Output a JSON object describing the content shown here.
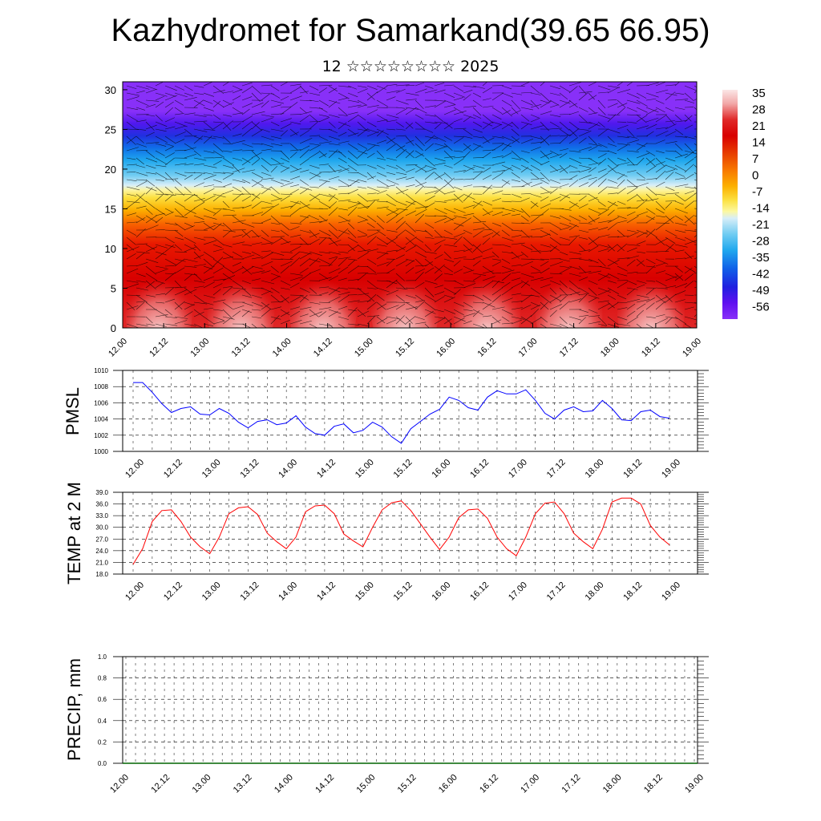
{
  "title": "Kazhydromet for Samarkand(39.65 66.95)",
  "subtitle": "12 ☆☆☆☆☆☆☆☆ 2025",
  "time_ticks": [
    "12.00",
    "12.12",
    "13.00",
    "13.12",
    "14.00",
    "14.12",
    "15.00",
    "15.12",
    "16.00",
    "16.12",
    "17.00",
    "17.12",
    "18.00",
    "18.12",
    "19.00"
  ],
  "chart_data": [
    {
      "type": "heatmap",
      "name": "temperature-height-section",
      "y_ticks": [
        "0",
        "5",
        "10",
        "15",
        "20",
        "25",
        "30"
      ],
      "ylim": [
        0,
        31
      ],
      "x_ticks": [
        "12.00",
        "12.12",
        "13.00",
        "13.12",
        "14.00",
        "14.12",
        "15.00",
        "15.12",
        "16.00",
        "16.12",
        "17.00",
        "17.12",
        "18.00",
        "18.12",
        "19.00"
      ],
      "colorbar_labels": [
        "35",
        "28",
        "21",
        "14",
        "7",
        "0",
        "-7",
        "-14",
        "-21",
        "-28",
        "-35",
        "-42",
        "-49",
        "-56"
      ],
      "colorbar_range": [
        35,
        -56
      ],
      "overlay": "wind vectors",
      "colors": [
        "#fbe6e6",
        "#f2a8a8",
        "#e04040",
        "#d80000",
        "#e83c00",
        "#f87800",
        "#fcb000",
        "#fce040",
        "#fcf8a0",
        "#d8eef8",
        "#70ccf2",
        "#20a8ee",
        "#1060e8",
        "#2020e0",
        "#6010f0",
        "#8830f8"
      ]
    },
    {
      "type": "line",
      "ylabel": "PMSL",
      "ylim": [
        1000,
        1010
      ],
      "y_ticks": [
        "1000",
        "1002",
        "1004",
        "1006",
        "1008",
        "1010"
      ],
      "x_ticks": [
        "12.00",
        "12.12",
        "13.00",
        "13.12",
        "14.00",
        "14.12",
        "15.00",
        "15.12",
        "16.00",
        "16.12",
        "17.00",
        "17.12",
        "18.00",
        "18.12",
        "19.00"
      ],
      "color": "#0000ff",
      "values": [
        1008.5,
        1008.5,
        1007.3,
        1005.9,
        1004.8,
        1005.3,
        1005.5,
        1004.6,
        1004.5,
        1005.3,
        1004.7,
        1003.6,
        1002.9,
        1003.7,
        1003.9,
        1003.3,
        1003.5,
        1004.4,
        1003.0,
        1002.2,
        1002.0,
        1003.1,
        1003.4,
        1002.3,
        1002.6,
        1003.6,
        1003.0,
        1001.8,
        1001.0,
        1002.8,
        1003.7,
        1004.6,
        1005.2,
        1006.7,
        1006.3,
        1005.4,
        1005.1,
        1006.7,
        1007.5,
        1007.1,
        1007.1,
        1007.6,
        1006.3,
        1004.7,
        1004.0,
        1005.1,
        1005.5,
        1004.9,
        1005.0,
        1006.3,
        1005.3,
        1003.9,
        1003.8,
        1004.9,
        1005.1,
        1004.3,
        1004.1
      ]
    },
    {
      "type": "line",
      "ylabel": "TEMP at 2 M",
      "ylim": [
        18,
        39
      ],
      "y_ticks": [
        "18.0",
        "21.0",
        "24.0",
        "27.0",
        "30.0",
        "33.0",
        "36.0",
        "39.0"
      ],
      "x_ticks": [
        "12.00",
        "12.12",
        "13.00",
        "13.12",
        "14.00",
        "14.12",
        "15.00",
        "15.12",
        "16.00",
        "16.12",
        "17.00",
        "17.12",
        "18.00",
        "18.12",
        "19.00"
      ],
      "color": "#ff0000",
      "values": [
        20.5,
        24.5,
        31.5,
        34.3,
        34.5,
        31.5,
        27.5,
        25.0,
        23.2,
        27.5,
        33.5,
        35.0,
        35.3,
        33.3,
        28.5,
        26.3,
        24.5,
        27.5,
        34.0,
        35.5,
        35.7,
        33.5,
        28.3,
        26.5,
        25.0,
        30.0,
        34.5,
        36.3,
        36.8,
        34.3,
        30.9,
        27.5,
        24.3,
        27.5,
        32.5,
        34.5,
        34.7,
        32.3,
        27.5,
        24.5,
        22.7,
        27.5,
        33.5,
        36.2,
        36.5,
        33.5,
        28.5,
        26.3,
        24.5,
        29.5,
        36.5,
        37.5,
        37.5,
        36.0,
        30.5,
        27.5,
        25.5
      ]
    },
    {
      "type": "line",
      "ylabel": "PRECIP, mm",
      "ylim": [
        0,
        1
      ],
      "y_ticks": [
        "0.0",
        "0.2",
        "0.4",
        "0.6",
        "0.8",
        "1.0"
      ],
      "x_ticks": [
        "12.00",
        "12.12",
        "13.00",
        "13.12",
        "14.00",
        "14.12",
        "15.00",
        "15.12",
        "16.00",
        "16.12",
        "17.00",
        "17.12",
        "18.00",
        "18.12",
        "19.00"
      ],
      "color": "#006400",
      "values": [
        0,
        0,
        0,
        0,
        0,
        0,
        0,
        0,
        0,
        0,
        0,
        0,
        0,
        0,
        0,
        0,
        0,
        0,
        0,
        0,
        0,
        0,
        0,
        0,
        0,
        0,
        0,
        0,
        0,
        0,
        0,
        0,
        0,
        0,
        0,
        0,
        0,
        0,
        0,
        0,
        0,
        0,
        0,
        0,
        0,
        0,
        0,
        0,
        0,
        0,
        0,
        0,
        0,
        0,
        0,
        0,
        0
      ]
    }
  ]
}
